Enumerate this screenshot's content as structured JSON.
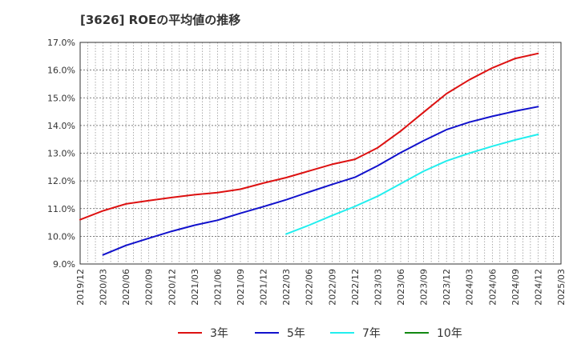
{
  "chart_data": {
    "type": "line",
    "title": "[3626]  ROEの平均値の推移",
    "xlabel": "",
    "ylabel": "",
    "ylim": [
      9.0,
      17.0
    ],
    "y_ticks": [
      9.0,
      10.0,
      11.0,
      12.0,
      13.0,
      14.0,
      15.0,
      16.0,
      17.0
    ],
    "y_tick_labels": [
      "9.0%",
      "10.0%",
      "11.0%",
      "12.0%",
      "13.0%",
      "14.0%",
      "15.0%",
      "16.0%",
      "17.0%"
    ],
    "categories": [
      "2019/12",
      "2020/03",
      "2020/06",
      "2020/09",
      "2020/12",
      "2021/03",
      "2021/06",
      "2021/09",
      "2021/12",
      "2022/03",
      "2022/06",
      "2022/09",
      "2022/12",
      "2023/03",
      "2023/06",
      "2023/09",
      "2023/12",
      "2024/03",
      "2024/06",
      "2024/09",
      "2024/12",
      "2025/03"
    ],
    "grid": true,
    "legend_position": "bottom",
    "series": [
      {
        "name": "3年",
        "color": "#dd1111",
        "values": [
          10.6,
          10.92,
          11.17,
          11.29,
          11.4,
          11.5,
          11.58,
          11.7,
          11.92,
          12.12,
          12.36,
          12.6,
          12.78,
          13.2,
          13.8,
          14.48,
          15.15,
          15.65,
          16.08,
          16.42,
          16.6,
          null
        ]
      },
      {
        "name": "5年",
        "color": "#1111cc",
        "values": [
          null,
          9.33,
          9.67,
          9.93,
          10.18,
          10.4,
          10.58,
          10.83,
          11.07,
          11.32,
          11.6,
          11.87,
          12.13,
          12.55,
          13.02,
          13.45,
          13.85,
          14.12,
          14.33,
          14.52,
          14.68,
          null
        ]
      },
      {
        "name": "7年",
        "color": "#22eeee",
        "values": [
          null,
          null,
          null,
          null,
          null,
          null,
          null,
          null,
          null,
          10.08,
          10.4,
          10.75,
          11.08,
          11.45,
          11.9,
          12.35,
          12.72,
          13.0,
          13.25,
          13.48,
          13.68,
          null
        ]
      },
      {
        "name": "10年",
        "color": "#118811",
        "values": [
          null,
          null,
          null,
          null,
          null,
          null,
          null,
          null,
          null,
          null,
          null,
          null,
          null,
          null,
          null,
          null,
          null,
          null,
          null,
          null,
          null,
          null
        ]
      }
    ]
  }
}
